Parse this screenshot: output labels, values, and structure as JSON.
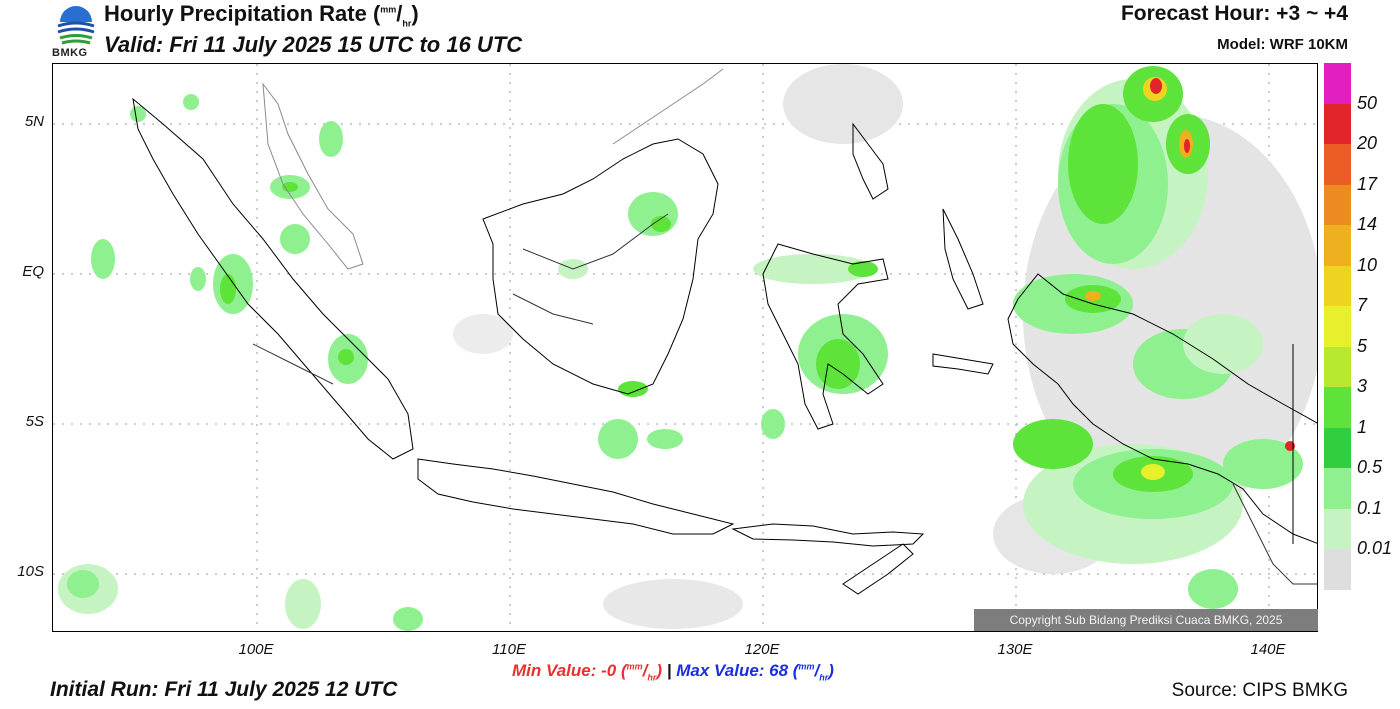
{
  "header": {
    "title_main": "Hourly Precipitation Rate (",
    "title_unit_num": "mm",
    "title_slash": "/",
    "title_unit_den": "hr",
    "title_close": ")",
    "valid": "Valid: Fri 11 July 2025 15 UTC to 16 UTC",
    "forecast_hour": "Forecast Hour: +3 ~ +4",
    "model": "Model: WRF 10KM",
    "logo_text": "BMKG"
  },
  "map": {
    "lat_labels": [
      "5N",
      "EQ",
      "5S",
      "10S"
    ],
    "lon_labels": [
      "100E",
      "110E",
      "120E",
      "130E",
      "140E"
    ],
    "copyright": "Copyright Sub Bidang Prediksi Cuaca BMKG, 2025"
  },
  "stats": {
    "min_label": "Min Value:  -0 (",
    "min_unit_num": "mm",
    "min_unit_den": "hr",
    "close": ")",
    "separator": "|",
    "max_label": "Max Value:  68 (",
    "max_unit_num": "mm",
    "max_unit_den": "hr",
    "min_color": "#e83030",
    "max_color": "#1c2fe0"
  },
  "footer": {
    "initial_run": "Initial Run: Fri 11 July 2025 12 UTC",
    "source": "Source: CIPS BMKG"
  },
  "colorbar": {
    "labels": [
      "50",
      "20",
      "17",
      "14",
      "10",
      "7",
      "5",
      "3",
      "1",
      "0.5",
      "0.1",
      "0.01"
    ],
    "colors": [
      "#e21fc0",
      "#e0262a",
      "#ea5e25",
      "#ee8a22",
      "#eeb01f",
      "#eed421",
      "#e8f02c",
      "#b8e830",
      "#5de33a",
      "#2fcf3f",
      "#8ef08e",
      "#c6f3c2",
      "#dedede"
    ]
  }
}
